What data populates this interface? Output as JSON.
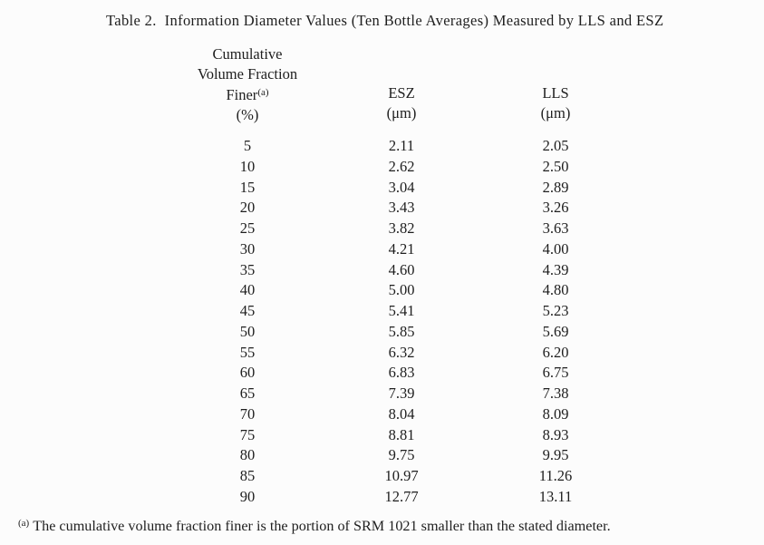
{
  "page": {
    "title": "Table 2.  Information Diameter Values (Ten Bottle Averages) Measured by LLS and ESZ"
  },
  "table": {
    "col1": {
      "line1": "Cumulative",
      "line2": "Volume Fraction",
      "line3_base": "Finer",
      "line3_sup": "(a)",
      "line4": "(%)"
    },
    "col2": {
      "line1": "ESZ",
      "line2": "(μm)"
    },
    "col3": {
      "line1": "LLS",
      "line2": "(μm)"
    },
    "rows": [
      {
        "pct": "5",
        "esz": "2.11",
        "lls": "2.05"
      },
      {
        "pct": "10",
        "esz": "2.62",
        "lls": "2.50"
      },
      {
        "pct": "15",
        "esz": "3.04",
        "lls": "2.89"
      },
      {
        "pct": "20",
        "esz": "3.43",
        "lls": "3.26"
      },
      {
        "pct": "25",
        "esz": "3.82",
        "lls": "3.63"
      },
      {
        "pct": "30",
        "esz": "4.21",
        "lls": "4.00"
      },
      {
        "pct": "35",
        "esz": "4.60",
        "lls": "4.39"
      },
      {
        "pct": "40",
        "esz": "5.00",
        "lls": "4.80"
      },
      {
        "pct": "45",
        "esz": "5.41",
        "lls": "5.23"
      },
      {
        "pct": "50",
        "esz": "5.85",
        "lls": "5.69"
      },
      {
        "pct": "55",
        "esz": "6.32",
        "lls": "6.20"
      },
      {
        "pct": "60",
        "esz": "6.83",
        "lls": "6.75"
      },
      {
        "pct": "65",
        "esz": "7.39",
        "lls": "7.38"
      },
      {
        "pct": "70",
        "esz": "8.04",
        "lls": "8.09"
      },
      {
        "pct": "75",
        "esz": "8.81",
        "lls": "8.93"
      },
      {
        "pct": "80",
        "esz": "9.75",
        "lls": "9.95"
      },
      {
        "pct": "85",
        "esz": "10.97",
        "lls": "11.26"
      },
      {
        "pct": "90",
        "esz": "12.77",
        "lls": "13.11"
      }
    ]
  },
  "footnote": {
    "marker": "(a)",
    "text": "The cumulative volume fraction finer is the portion of SRM 1021 smaller than the stated diameter."
  },
  "colors": {
    "background": "#fcfcfc",
    "text": "#1e1e1e"
  }
}
